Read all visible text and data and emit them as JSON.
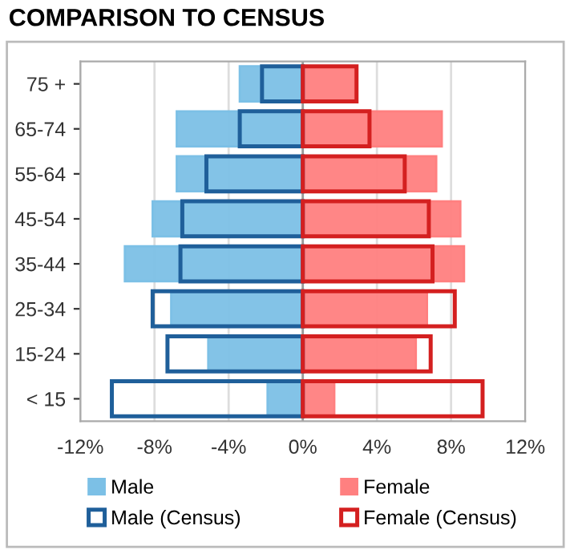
{
  "chart_data": {
    "type": "bar",
    "orientation": "horizontal",
    "title": "COMPARISON TO CENSUS",
    "categories": [
      "75 +",
      "65-74",
      "55-64",
      "45-54",
      "35-44",
      "25-34",
      "15-24",
      "< 15"
    ],
    "series": [
      {
        "name": "Male",
        "color": "#7cc0e6",
        "values": [
          -3.4,
          -6.8,
          -6.8,
          -8.1,
          -9.6,
          -7.1,
          -5.1,
          -1.9
        ]
      },
      {
        "name": "Female",
        "color": "#ff8080",
        "values": [
          2.8,
          7.5,
          7.2,
          8.5,
          8.7,
          6.7,
          6.1,
          1.7
        ]
      },
      {
        "name": "Male (Census)",
        "color": "#1f5f9a",
        "line_style": "solid",
        "values": [
          -2.2,
          -3.4,
          -5.2,
          -6.5,
          -6.6,
          -8.1,
          -7.3,
          -10.3
        ]
      },
      {
        "name": "Female (Census)",
        "color": "#d42020",
        "line_style": "solid",
        "values": [
          2.9,
          3.6,
          5.5,
          6.8,
          7.0,
          8.2,
          6.9,
          9.7
        ]
      }
    ],
    "xlim": [
      -12,
      12
    ],
    "xticks": [
      {
        "value": -12,
        "label": "-12%"
      },
      {
        "value": -8,
        "label": "-8%"
      },
      {
        "value": -4,
        "label": "-4%"
      },
      {
        "value": 0,
        "label": "0%"
      },
      {
        "value": 4,
        "label": "4%"
      },
      {
        "value": 8,
        "label": "8%"
      },
      {
        "value": 12,
        "label": "12%"
      }
    ],
    "grid": "x",
    "legend": "bottom"
  }
}
